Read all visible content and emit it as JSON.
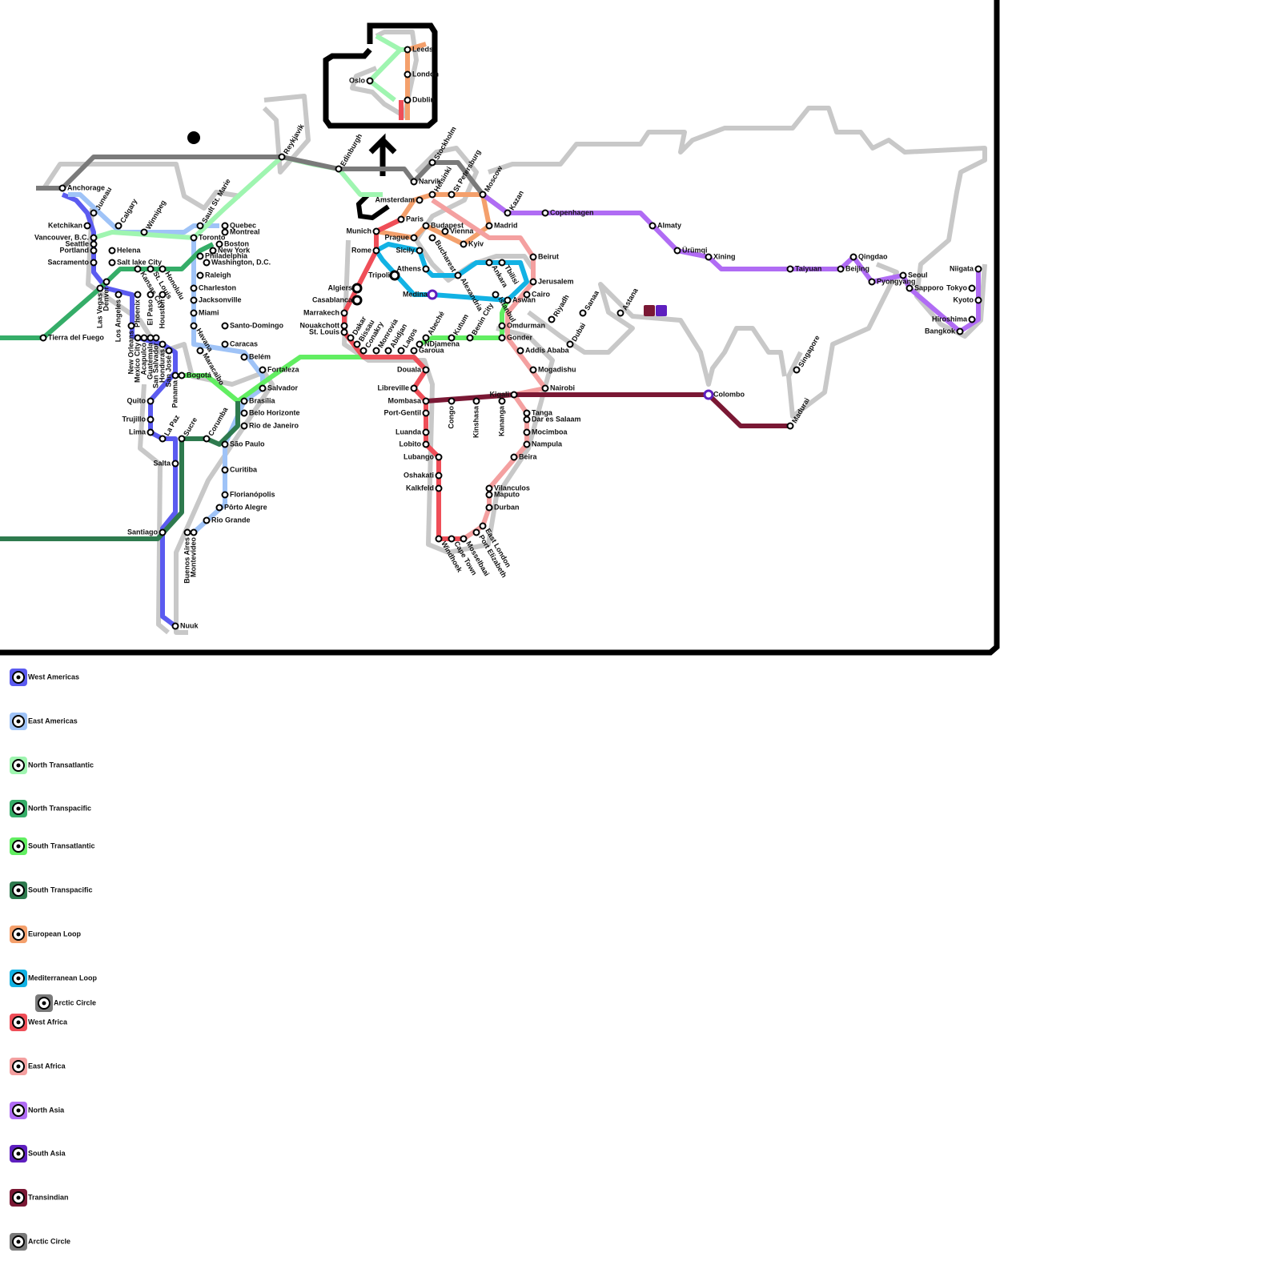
{
  "stations": [
    "Anchorage",
    "Juneau",
    "Ketchikan",
    "Calgary",
    "Winnipeg",
    "Vancouver, B.C.",
    "Seattle",
    "Portland",
    "Helena",
    "Sacramento",
    "Salt lake City",
    "Sault St. Marie",
    "Quebec",
    "Montreal",
    "Toronto",
    "Boston",
    "New York",
    "Philadelphia",
    "Washington, D.C.",
    "Raleigh",
    "Charleston",
    "Jacksonville",
    "Miami",
    "Havana",
    "Santo-Domingo",
    "Caracas",
    "Maracaibo",
    "Belém",
    "Fortaleza",
    "Salvador",
    "Brasília",
    "Belo Horizonte",
    "Rio de Janeiro",
    "São Paulo",
    "Curitiba",
    "Florianópolis",
    "Pôrto Alegre",
    "Rio Grande",
    "Montevideo",
    "Buenos Aires",
    "Santiago",
    "Salta",
    "Sucre",
    "La Paz",
    "Corumba",
    "Lima",
    "Trujillo",
    "Quito",
    "Bogotá",
    "Panama",
    "San José",
    "Honduras",
    "San Salvador",
    "Guatemala",
    "Acapulco",
    "Mexico City",
    "New Orleans",
    "Houston",
    "El Paso",
    "Phoenix",
    "Los Angeles",
    "Las Vegas",
    "Denver",
    "Kansas City",
    "St. Louis",
    "Honolulu",
    "Tierra del Fuego",
    "Nuuk",
    "Reykjavik",
    "Edinburgh",
    "Leeds",
    "London",
    "Dublin",
    "Oslo",
    "Narvik",
    "Stockholm",
    "Helsinki",
    "St Petersburg",
    "Moscow",
    "Kazan",
    "Copenhagen",
    "Amsterdam",
    "Paris",
    "Munich",
    "Prague",
    "Budapest",
    "Vienna",
    "Bucharest",
    "Kyiv",
    "Madrid",
    "Rome",
    "Sicily",
    "Athens",
    "Alexandria",
    "Istanbul",
    "Ankara",
    "Tbilisi",
    "Beirut",
    "Jerusalem",
    "Cairo",
    "Aswan",
    "Omdurman",
    "Gonder",
    "Addis Ababa",
    "Mogadishu",
    "Nairobi",
    "Kigali",
    "Kananga",
    "Kinshasa",
    "Congo",
    "Mombasa",
    "Tanga",
    "Dar es Salaam",
    "Mocimboa",
    "Nampula",
    "Beira",
    "Vilanculos",
    "Maputo",
    "Durban",
    "East London",
    "Port Elizabeth",
    "Mosselbaai",
    "Cape Town",
    "Windhoek",
    "Kalkfeld",
    "Oshakati",
    "Lubango",
    "Lobito",
    "Luanda",
    "Port-Gentil",
    "Libreville",
    "Douala",
    "Garoua",
    "NDjamena",
    "Abeché",
    "Kutum",
    "Benin City",
    "Lagos",
    "Abidjan",
    "Monrovia",
    "Conakry",
    "Bissau",
    "Dakar",
    "St. Louis",
    "Nouakchott",
    "Marrakech",
    "Casablanca",
    "Algiers",
    "Tripoli",
    "Medina",
    "Riyadh",
    "Sanaa",
    "Dubai",
    "Astana",
    "Almaty",
    "Ürümqi",
    "Xining",
    "Taiyuan",
    "Beijing",
    "Qingdao",
    "Pyongyang",
    "Seoul",
    "Sapporo",
    "Niigata",
    "Tokyo",
    "Kyoto",
    "Hiroshima",
    "Bangkok",
    "Singapore",
    "Madurai",
    "Colombo"
  ],
  "legend": [
    {
      "name": "West Americas",
      "color": "#5b5bf0"
    },
    {
      "name": "East Americas",
      "color": "#9fc3f7"
    },
    {
      "name": "North Transatlantic",
      "color": "#9ff5b0"
    },
    {
      "name": "North Transpacific",
      "color": "#35ad68"
    },
    {
      "name": "South Transatlantic",
      "color": "#62ee62"
    },
    {
      "name": "South Transpacific",
      "color": "#2e7a4e"
    },
    {
      "name": "European Loop",
      "color": "#f4a06c"
    },
    {
      "name": "Mediterranean Loop",
      "color": "#12b2e4"
    },
    {
      "name": "Arctic Circle",
      "color": "#7a7a7a"
    },
    {
      "name": "West Africa",
      "color": "#ef4e58"
    },
    {
      "name": "East Africa",
      "color": "#f4a0a0"
    },
    {
      "name": "North Asia",
      "color": "#b06cf4"
    },
    {
      "name": "South Asia",
      "color": "#5e1fbf"
    },
    {
      "name": "Transindian",
      "color": "#7a1834"
    },
    {
      "name": "Arctic Circle",
      "color": "#7a7a7a"
    }
  ]
}
